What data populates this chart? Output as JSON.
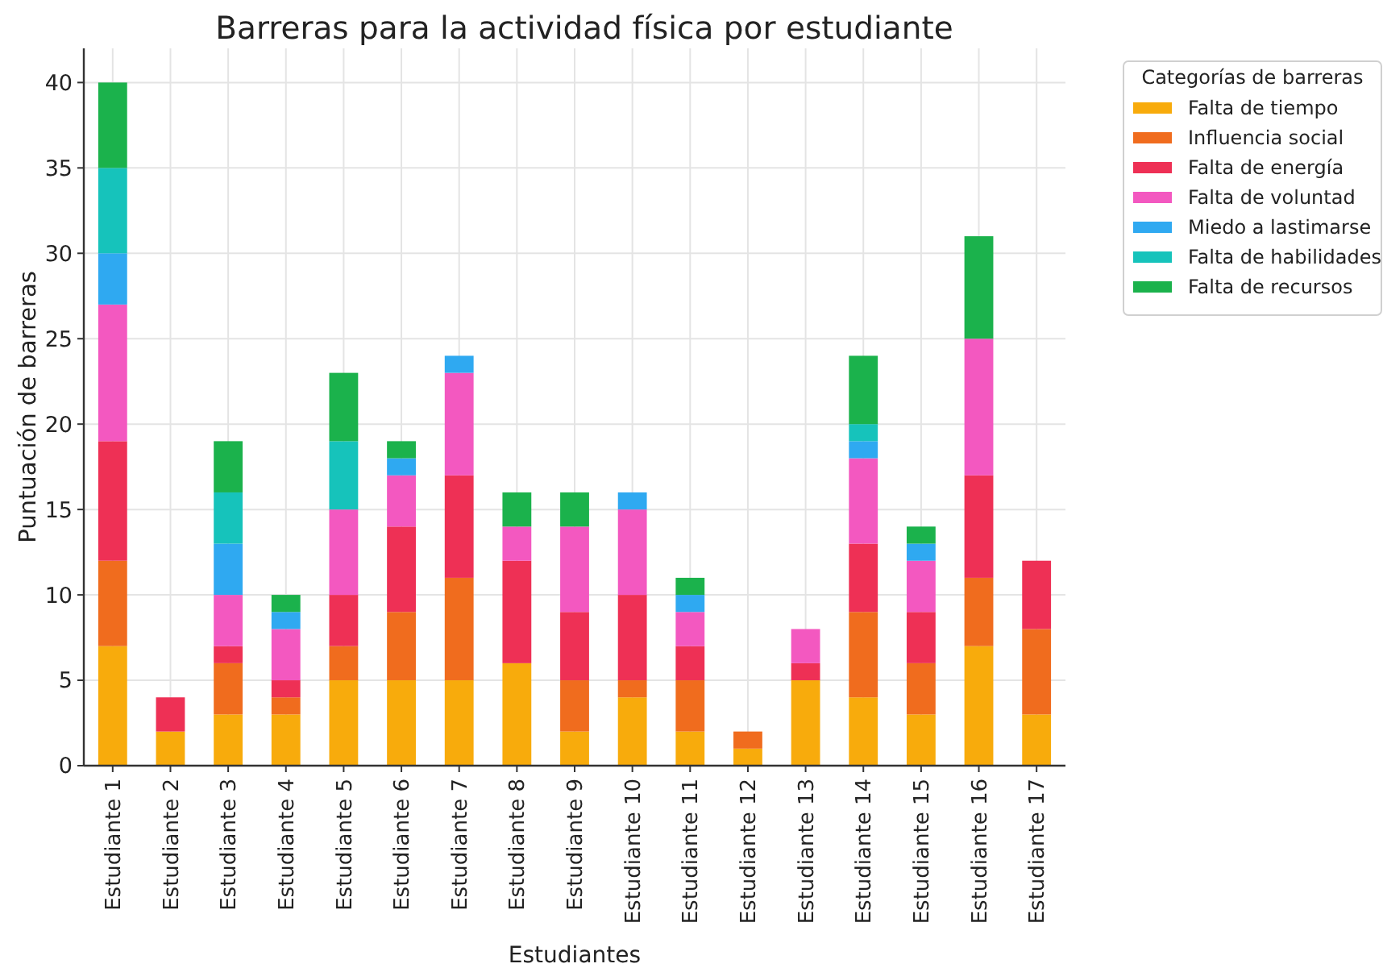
{
  "chart_data": {
    "type": "bar",
    "stacked": true,
    "title": "Barreras para la actividad física por estudiante",
    "xlabel": "Estudiantes",
    "ylabel": "Puntuación de barreras",
    "legend_title": "Categorías de barreras",
    "legend": "top right",
    "grid": true,
    "categories": [
      "Estudiante 1",
      "Estudiante 2",
      "Estudiante 3",
      "Estudiante 4",
      "Estudiante 5",
      "Estudiante 6",
      "Estudiante 7",
      "Estudiante 8",
      "Estudiante 9",
      "Estudiante 10",
      "Estudiante 11",
      "Estudiante 12",
      "Estudiante 13",
      "Estudiante 14",
      "Estudiante 15",
      "Estudiante 16",
      "Estudiante 17"
    ],
    "ylim": [
      0,
      42
    ],
    "yticks": [
      0,
      5,
      10,
      15,
      20,
      25,
      30,
      35,
      40
    ],
    "series": [
      {
        "name": "Falta de tiempo",
        "color": "#f8ab0c",
        "values": [
          7,
          2,
          3,
          3,
          5,
          5,
          5,
          6,
          2,
          4,
          2,
          1,
          5,
          4,
          3,
          7,
          3
        ]
      },
      {
        "name": "Influencia social",
        "color": "#f06c1e",
        "values": [
          5,
          0,
          3,
          1,
          2,
          4,
          6,
          0,
          3,
          1,
          3,
          1,
          0,
          5,
          3,
          4,
          5
        ]
      },
      {
        "name": "Falta de energía",
        "color": "#ee3055",
        "values": [
          7,
          2,
          1,
          1,
          3,
          5,
          6,
          6,
          4,
          5,
          2,
          0,
          1,
          4,
          3,
          6,
          4
        ]
      },
      {
        "name": "Falta de voluntad",
        "color": "#f358c0",
        "values": [
          8,
          0,
          3,
          3,
          5,
          3,
          6,
          2,
          5,
          5,
          2,
          0,
          2,
          5,
          3,
          8,
          0
        ]
      },
      {
        "name": "Miedo a lastimarse",
        "color": "#2fa9f1",
        "values": [
          3,
          0,
          3,
          1,
          0,
          1,
          1,
          0,
          0,
          1,
          1,
          0,
          0,
          1,
          1,
          0,
          0
        ]
      },
      {
        "name": "Falta de habilidades",
        "color": "#16c3bb",
        "values": [
          5,
          0,
          3,
          0,
          4,
          0,
          0,
          0,
          0,
          0,
          0,
          0,
          0,
          1,
          0,
          0,
          0
        ]
      },
      {
        "name": "Falta de recursos",
        "color": "#1bb24c",
        "values": [
          5,
          0,
          3,
          1,
          4,
          1,
          0,
          2,
          2,
          0,
          1,
          0,
          0,
          4,
          1,
          6,
          0
        ]
      }
    ]
  }
}
